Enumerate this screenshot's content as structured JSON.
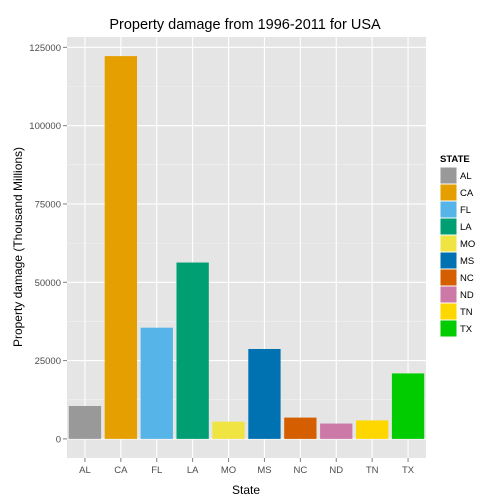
{
  "chart_data": {
    "type": "bar",
    "title": "Property damage from 1996-2011 for USA",
    "xlabel": "State",
    "ylabel": "Property damage (Thousand Millions)",
    "categories": [
      "AL",
      "CA",
      "FL",
      "LA",
      "MO",
      "MS",
      "NC",
      "ND",
      "TN",
      "TX"
    ],
    "values": [
      10500,
      122200,
      35500,
      56300,
      5500,
      28700,
      6800,
      4900,
      5900,
      20900
    ],
    "colors": [
      "#999999",
      "#E69F00",
      "#56B4E9",
      "#009E73",
      "#F0E442",
      "#0072B2",
      "#D55E00",
      "#CC79A7",
      "#FFD700",
      "#00CC00"
    ],
    "ylim": [
      -6100,
      128300
    ],
    "yticks": [
      0,
      25000,
      50000,
      75000,
      100000,
      125000
    ],
    "grid": true,
    "legend": {
      "title": "STATE",
      "placement": "right",
      "entries": [
        "AL",
        "CA",
        "FL",
        "LA",
        "MO",
        "MS",
        "NC",
        "ND",
        "TN",
        "TX"
      ]
    }
  }
}
